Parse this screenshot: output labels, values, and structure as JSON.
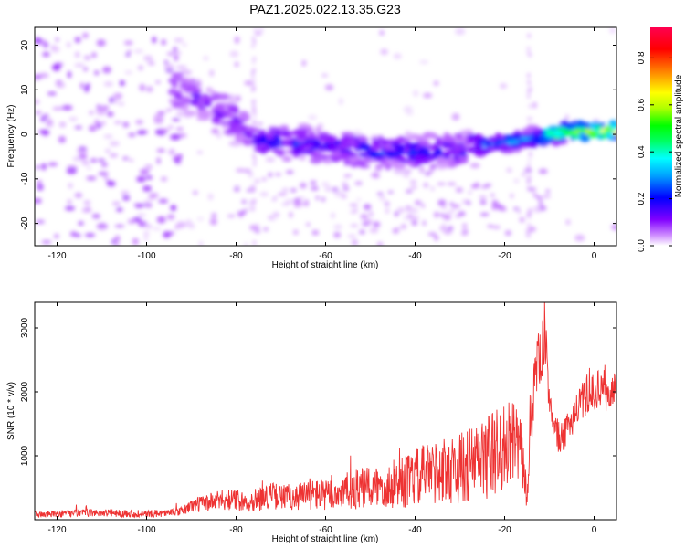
{
  "figure": {
    "title": "PAZ1.2025.022.13.35.G23"
  },
  "chart_data": [
    {
      "type": "heatmap",
      "xlabel": "Height of straight line (km)",
      "ylabel": "Frequency (Hz)",
      "xlim": [
        -125,
        5
      ],
      "ylim": [
        -25,
        24
      ],
      "xticks": [
        "-120",
        "-100",
        "-80",
        "-60",
        "-40",
        "-20",
        "0"
      ],
      "yticks": [
        "-20",
        "-10",
        "0",
        "10",
        "20"
      ],
      "colorbar": {
        "label": "Normalized spectral amplitude",
        "range": [
          0,
          0.93
        ],
        "ticks": [
          "0.0",
          "0.2",
          "0.4",
          "0.6",
          "0.8"
        ],
        "colormap": [
          "#ffffff",
          "#cc88ff",
          "#8000ff",
          "#0000ff",
          "#00a0ff",
          "#00ffff",
          "#00ff60",
          "#00ff00",
          "#b0ff00",
          "#ffff00",
          "#ff8000",
          "#ff0000",
          "#ff0050"
        ]
      },
      "ridge": {
        "description_points": [
          {
            "x": -92,
            "y": 10
          },
          {
            "x": -85,
            "y": 6
          },
          {
            "x": -80,
            "y": 3
          },
          {
            "x": -75,
            "y": -1
          },
          {
            "x": -70,
            "y": -2
          },
          {
            "x": -60,
            "y": -2.5
          },
          {
            "x": -50,
            "y": -4
          },
          {
            "x": -40,
            "y": -4
          },
          {
            "x": -30,
            "y": -3
          },
          {
            "x": -22,
            "y": -2
          },
          {
            "x": -15,
            "y": -1
          },
          {
            "x": -10,
            "y": 0
          },
          {
            "x": -5,
            "y": 0.5
          },
          {
            "x": 0,
            "y": 0.7
          },
          {
            "x": 5,
            "y": 0.8
          }
        ]
      }
    },
    {
      "type": "line",
      "xlabel": "Height of straight line (km)",
      "ylabel": "SNR (10 * v/v)",
      "xlim": [
        -125,
        5
      ],
      "ylim": [
        0,
        3400
      ],
      "xticks": [
        "-120",
        "-100",
        "-80",
        "-60",
        "-40",
        "-20",
        "0"
      ],
      "yticks": [
        "1000",
        "2000",
        "3000"
      ],
      "series": [
        {
          "name": "SNR",
          "color": "#ee3333",
          "x": [
            -125,
            -120,
            -115,
            -110,
            -105,
            -100,
            -95,
            -92,
            -90,
            -88,
            -85,
            -82,
            -80,
            -78,
            -75,
            -72,
            -70,
            -68,
            -65,
            -62,
            -60,
            -58,
            -55,
            -52,
            -50,
            -48,
            -45,
            -42,
            -40,
            -38,
            -35,
            -32,
            -30,
            -28,
            -25,
            -22,
            -20,
            -18,
            -16,
            -15,
            -14,
            -13,
            -12,
            -11,
            -10,
            -9,
            -8,
            -7,
            -6,
            -5,
            -4,
            -3,
            -2,
            -1,
            0,
            1,
            2,
            3,
            4,
            5
          ],
          "values": [
            80,
            90,
            100,
            110,
            100,
            90,
            110,
            130,
            220,
            250,
            280,
            320,
            310,
            280,
            320,
            380,
            350,
            360,
            380,
            400,
            380,
            400,
            450,
            480,
            500,
            520,
            550,
            600,
            650,
            700,
            750,
            780,
            800,
            850,
            950,
            1050,
            1150,
            1200,
            1000,
            300,
            1700,
            2400,
            2500,
            2900,
            1900,
            1500,
            1300,
            1250,
            1400,
            1600,
            1700,
            1800,
            1900,
            1950,
            2000,
            2050,
            2100,
            1900,
            2000,
            2100
          ],
          "noise": [
            50,
            55,
            60,
            60,
            60,
            60,
            60,
            70,
            110,
            130,
            150,
            170,
            170,
            160,
            190,
            210,
            200,
            210,
            230,
            250,
            240,
            260,
            300,
            330,
            340,
            360,
            380,
            420,
            450,
            480,
            520,
            540,
            560,
            600,
            650,
            700,
            700,
            650,
            500,
            150,
            600,
            500,
            450,
            400,
            350,
            300,
            250,
            250,
            260,
            280,
            290,
            300,
            300,
            300,
            300,
            300,
            300,
            280,
            280,
            280
          ]
        }
      ]
    }
  ]
}
